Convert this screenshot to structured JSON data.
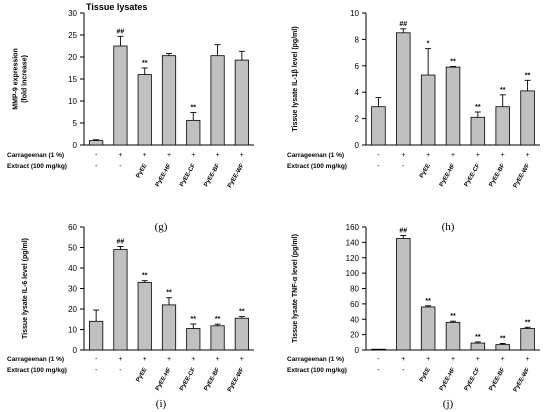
{
  "chart_data": [
    {
      "type": "bar",
      "panel_label": "(g)",
      "title": "Tissue lysates",
      "ylabel": "MMP-9 expression\n(fold increase)",
      "ylim": [
        0,
        30
      ],
      "yticks": [
        0,
        5,
        10,
        15,
        20,
        25,
        30
      ],
      "categories": [
        "",
        "",
        "PyEE",
        "PyEE-HF",
        "PyEE-CF",
        "PyEE-BF",
        "PyEE-WF"
      ],
      "carrageenan": [
        "-",
        "+",
        "+",
        "+",
        "+",
        "+",
        "+"
      ],
      "extract": [
        "-",
        "-",
        "",
        "",
        "",
        "",
        ""
      ],
      "values": [
        1,
        22.5,
        16,
        20.3,
        5.6,
        20.3,
        19.3
      ],
      "errors": [
        0.2,
        2.2,
        1.5,
        0.5,
        1.8,
        2.5,
        2.0
      ],
      "annotations": [
        "",
        "##",
        "**",
        "",
        "**",
        "",
        ""
      ]
    },
    {
      "type": "bar",
      "panel_label": "(h)",
      "ylabel": "Tissue lysate IL-1β level (pg/ml)",
      "ylim": [
        0,
        10
      ],
      "yticks": [
        0,
        2,
        4,
        6,
        8,
        10
      ],
      "categories": [
        "",
        "",
        "PyEE",
        "PyEE-HF",
        "PyEE-CF",
        "PyEE-BF",
        "PyEE-WF"
      ],
      "carrageenan": [
        "-",
        "+",
        "+",
        "+",
        "+",
        "+",
        "+"
      ],
      "extract": [
        "-",
        "-",
        "",
        "",
        "",
        "",
        ""
      ],
      "values": [
        2.9,
        8.5,
        5.3,
        5.9,
        2.1,
        2.9,
        4.1
      ],
      "errors": [
        0.7,
        0.3,
        2.0,
        0.05,
        0.4,
        0.9,
        0.8
      ],
      "annotations": [
        "",
        "##",
        "*",
        "**",
        "**",
        "**",
        "**"
      ]
    },
    {
      "type": "bar",
      "panel_label": "(i)",
      "ylabel": "Tissue lysate IL-6 level (pg/ml)",
      "ylim": [
        0,
        60
      ],
      "yticks": [
        0,
        10,
        20,
        30,
        40,
        50,
        60
      ],
      "categories": [
        "",
        "",
        "PyEE",
        "PyEE-HF",
        "PyEE-CF",
        "PyEE-BF",
        "PyEE-WF"
      ],
      "carrageenan": [
        "-",
        "+",
        "+",
        "+",
        "+",
        "+",
        "+"
      ],
      "extract": [
        "-",
        "-",
        "",
        "",
        "",
        "",
        ""
      ],
      "values": [
        14,
        49,
        33,
        22,
        10.5,
        11.8,
        15.5
      ],
      "errors": [
        5.5,
        1.5,
        0.8,
        3.5,
        2.2,
        0.8,
        0.8
      ],
      "annotations": [
        "",
        "##",
        "**",
        "**",
        "**",
        "**",
        "**"
      ]
    },
    {
      "type": "bar",
      "panel_label": "(j)",
      "ylabel": "Tissue lysate TNF-α level (pg/ml)",
      "ylim": [
        0,
        160
      ],
      "yticks": [
        0,
        20,
        40,
        60,
        80,
        100,
        120,
        140,
        160
      ],
      "categories": [
        "",
        "",
        "PyEE",
        "PyEE-HF",
        "PyEE-CF",
        "PyEE-BF",
        "PyEE-WF"
      ],
      "carrageenan": [
        "-",
        "+",
        "+",
        "+",
        "+",
        "+",
        "+"
      ],
      "extract": [
        "-",
        "-",
        "",
        "",
        "",
        "",
        ""
      ],
      "values": [
        0,
        145,
        56,
        36,
        9,
        7,
        28
      ],
      "errors": [
        0,
        4,
        1.5,
        1.5,
        1.5,
        1.5,
        1.5
      ],
      "annotations": [
        "",
        "##",
        "**",
        "**",
        "**",
        "**",
        "**"
      ]
    }
  ],
  "row_labels": {
    "carrageenan": "Carrageenan (1 %)",
    "extract": "Extract (100 mg/kg)"
  },
  "colors": {
    "bar": "#c0c0c0",
    "stroke": "#000000"
  }
}
